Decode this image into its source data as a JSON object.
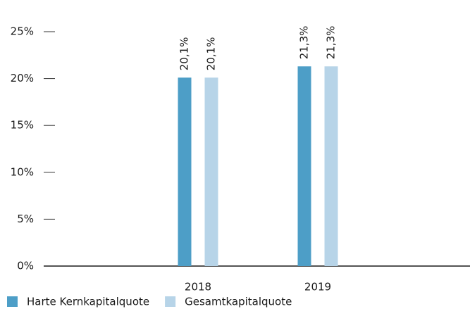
{
  "chart_data": {
    "type": "bar",
    "categories": [
      "2018",
      "2019"
    ],
    "series": [
      {
        "name": "Harte Kernkapitalquote",
        "color": "#4d9ec7",
        "values": [
          20.1,
          21.3
        ],
        "value_labels": [
          "20,1%",
          "21,3%"
        ]
      },
      {
        "name": "Gesamtkapitalquote",
        "color": "#b7d4e8",
        "values": [
          20.1,
          21.3
        ],
        "value_labels": [
          "20,1%",
          "21,3%"
        ]
      }
    ],
    "ylim": [
      0,
      25
    ],
    "yticks": [
      {
        "value": 0,
        "label": "0%"
      },
      {
        "value": 5,
        "label": "5%"
      },
      {
        "value": 10,
        "label": "10%"
      },
      {
        "value": 15,
        "label": "15%"
      },
      {
        "value": 20,
        "label": "20%"
      },
      {
        "value": 25,
        "label": "25%"
      }
    ],
    "legend": "bottom-left"
  }
}
